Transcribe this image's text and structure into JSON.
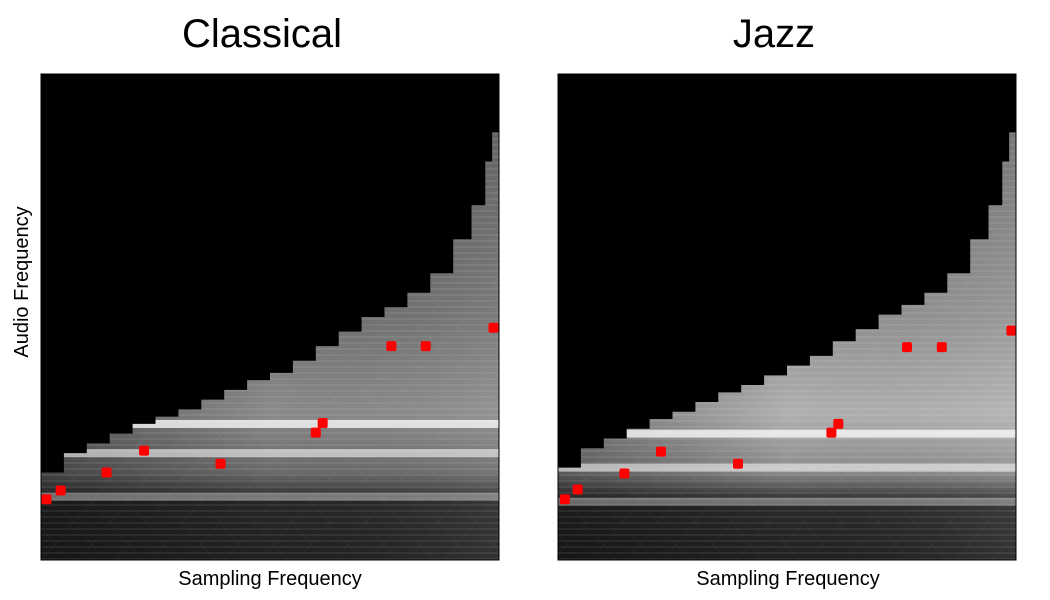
{
  "chart_data": [
    {
      "type": "heatmap",
      "title": "Classical",
      "xlabel": "Sampling Frequency",
      "ylabel": "Audio Frequency",
      "xlim": [
        0,
        1
      ],
      "ylim": [
        0,
        1
      ],
      "colormap": "grayscale",
      "masked_color": "#000000",
      "boundary": [
        [
          0.0,
          0.18
        ],
        [
          0.05,
          0.22
        ],
        [
          0.1,
          0.24
        ],
        [
          0.15,
          0.26
        ],
        [
          0.2,
          0.28
        ],
        [
          0.25,
          0.295
        ],
        [
          0.3,
          0.31
        ],
        [
          0.35,
          0.33
        ],
        [
          0.4,
          0.35
        ],
        [
          0.45,
          0.37
        ],
        [
          0.5,
          0.385
        ],
        [
          0.55,
          0.41
        ],
        [
          0.6,
          0.44
        ],
        [
          0.65,
          0.47
        ],
        [
          0.7,
          0.5
        ],
        [
          0.75,
          0.52
        ],
        [
          0.8,
          0.55
        ],
        [
          0.85,
          0.59
        ],
        [
          0.9,
          0.66
        ],
        [
          0.94,
          0.73
        ],
        [
          0.97,
          0.82
        ],
        [
          0.985,
          0.88
        ],
        [
          1.0,
          0.93
        ]
      ],
      "bright_bands": [
        0.28,
        0.22,
        0.13
      ],
      "markers": {
        "color": "#ff0000",
        "points": [
          [
            0.012,
            0.125
          ],
          [
            0.043,
            0.143
          ],
          [
            0.143,
            0.18
          ],
          [
            0.225,
            0.225
          ],
          [
            0.392,
            0.198
          ],
          [
            0.6,
            0.262
          ],
          [
            0.615,
            0.282
          ],
          [
            0.765,
            0.44
          ],
          [
            0.84,
            0.44
          ],
          [
            0.988,
            0.478
          ]
        ]
      }
    },
    {
      "type": "heatmap",
      "title": "Jazz",
      "xlabel": "Sampling Frequency",
      "ylabel": "",
      "xlim": [
        0,
        1
      ],
      "ylim": [
        0,
        1
      ],
      "colormap": "grayscale",
      "masked_color": "#000000",
      "boundary": [
        [
          0.0,
          0.19
        ],
        [
          0.05,
          0.23
        ],
        [
          0.1,
          0.25
        ],
        [
          0.15,
          0.27
        ],
        [
          0.2,
          0.29
        ],
        [
          0.25,
          0.305
        ],
        [
          0.3,
          0.325
        ],
        [
          0.35,
          0.345
        ],
        [
          0.4,
          0.36
        ],
        [
          0.45,
          0.38
        ],
        [
          0.5,
          0.4
        ],
        [
          0.55,
          0.42
        ],
        [
          0.6,
          0.45
        ],
        [
          0.65,
          0.475
        ],
        [
          0.7,
          0.505
        ],
        [
          0.75,
          0.525
        ],
        [
          0.8,
          0.55
        ],
        [
          0.85,
          0.59
        ],
        [
          0.9,
          0.66
        ],
        [
          0.94,
          0.73
        ],
        [
          0.97,
          0.82
        ],
        [
          0.985,
          0.88
        ],
        [
          1.0,
          0.93
        ]
      ],
      "bright_bands": [
        0.26,
        0.19,
        0.12
      ],
      "markers": {
        "color": "#ff0000",
        "points": [
          [
            0.015,
            0.125
          ],
          [
            0.043,
            0.145
          ],
          [
            0.145,
            0.178
          ],
          [
            0.225,
            0.223
          ],
          [
            0.393,
            0.198
          ],
          [
            0.597,
            0.262
          ],
          [
            0.612,
            0.28
          ],
          [
            0.762,
            0.438
          ],
          [
            0.838,
            0.438
          ],
          [
            0.99,
            0.472
          ]
        ]
      }
    }
  ]
}
